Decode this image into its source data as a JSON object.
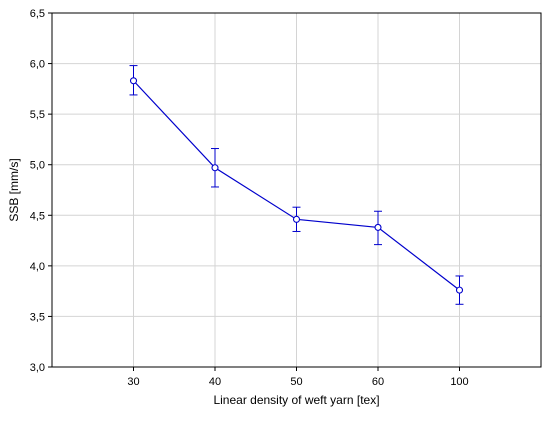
{
  "chart_data": {
    "type": "line",
    "title": "",
    "xlabel": "Linear density of weft yarn   [tex]",
    "ylabel": "SSB   [mm/s]",
    "categories": [
      "30",
      "40",
      "50",
      "60",
      "100"
    ],
    "ylim": [
      3.0,
      6.5
    ],
    "yticks": [
      "3,0",
      "3,5",
      "4,0",
      "4,5",
      "5,0",
      "5,5",
      "6,0",
      "6,5"
    ],
    "ytick_values": [
      3.0,
      3.5,
      4.0,
      4.5,
      5.0,
      5.5,
      6.0,
      6.5
    ],
    "grid": true,
    "legend": "none",
    "series": [
      {
        "values": [
          5.83,
          4.97,
          4.46,
          4.38,
          3.76
        ],
        "error_low": [
          5.69,
          4.78,
          4.34,
          4.21,
          3.62
        ],
        "error_high": [
          5.98,
          5.16,
          4.58,
          4.54,
          3.9
        ],
        "color": "#0000cc",
        "marker": "circle"
      }
    ]
  }
}
